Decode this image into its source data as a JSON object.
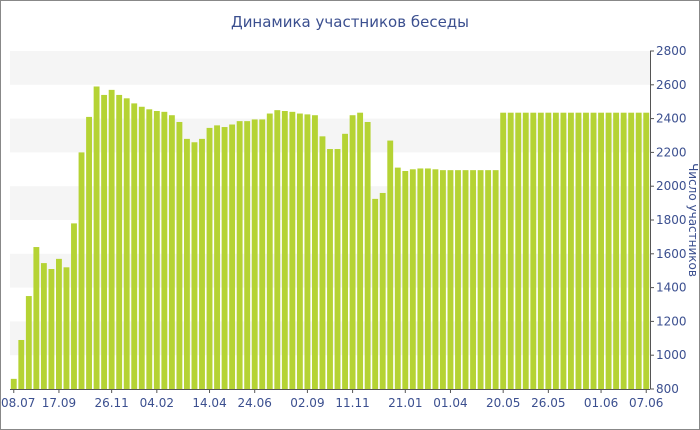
{
  "chart_data": {
    "type": "bar",
    "title": "Динамика участников беседы",
    "ylabel": "Число участников",
    "xlabel": "",
    "ylim": [
      800,
      2800
    ],
    "yticks": [
      800,
      1000,
      1200,
      1400,
      1600,
      1800,
      2000,
      2200,
      2400,
      2600,
      2800
    ],
    "x_tick_labels": [
      "08.07",
      "17.09",
      "26.11",
      "04.02",
      "14.04",
      "24.06",
      "02.09",
      "11.11",
      "21.01",
      "01.04",
      "20.05",
      "26.05",
      "01.06",
      "07.06"
    ],
    "grid": "horizontal alternating bands",
    "colors": {
      "bar": "#b5d334",
      "band": "#f5f5f5",
      "text": "#3b4f8f",
      "axis": "#555555"
    },
    "values": [
      860,
      1090,
      1350,
      1640,
      1545,
      1510,
      1570,
      1520,
      1780,
      2200,
      2410,
      2590,
      2540,
      2570,
      2540,
      2520,
      2490,
      2470,
      2455,
      2445,
      2440,
      2420,
      2380,
      2280,
      2260,
      2280,
      2345,
      2360,
      2350,
      2365,
      2385,
      2385,
      2395,
      2395,
      2430,
      2450,
      2445,
      2440,
      2430,
      2425,
      2420,
      2295,
      2220,
      2220,
      2310,
      2420,
      2435,
      2380,
      1925,
      1960,
      2270,
      2110,
      2090,
      2100,
      2105,
      2105,
      2100,
      2095,
      2095,
      2095,
      2095,
      2095,
      2095,
      2095,
      2095,
      2435,
      2435,
      2435,
      2435,
      2435,
      2435,
      2435,
      2435,
      2435,
      2435,
      2435,
      2435,
      2435,
      2435,
      2435,
      2435,
      2435,
      2435,
      2435,
      2435
    ]
  }
}
